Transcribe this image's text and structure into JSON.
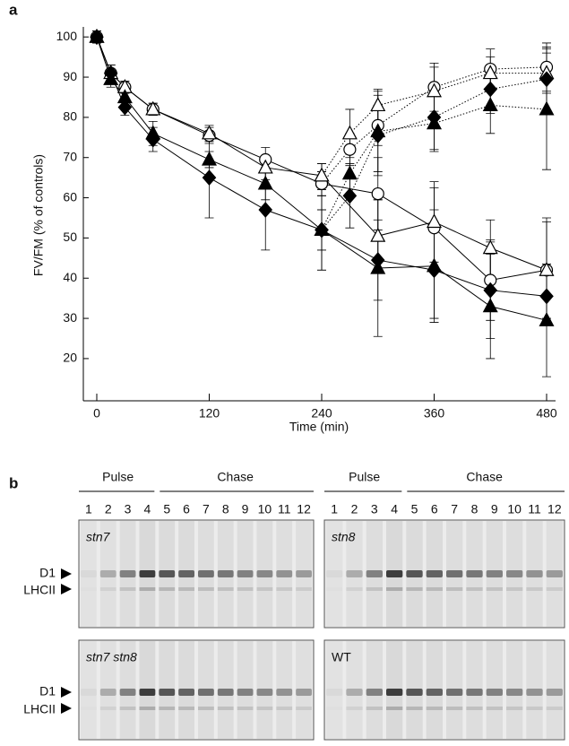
{
  "panel_a_label": "a",
  "chart_data": {
    "type": "line",
    "xlabel": "Time (min)",
    "ylabel": "FV/FM (% of controls)",
    "xlim": [
      -14,
      490
    ],
    "xticks": [
      0,
      120,
      240,
      360,
      480
    ],
    "ylim": [
      9.5,
      102.5
    ],
    "yticks": [
      20,
      30,
      40,
      50,
      60,
      70,
      80,
      90,
      100
    ],
    "series": [
      {
        "marker": "circle",
        "filled": false,
        "dash": "dotted",
        "color": "#000000",
        "x": [
          240,
          270,
          300,
          360,
          420,
          480
        ],
        "values": [
          63.5,
          72,
          78,
          87.5,
          92,
          92.5
        ],
        "errors": [
          3,
          4,
          5,
          6,
          5,
          6
        ]
      },
      {
        "marker": "triangle",
        "filled": false,
        "dash": "dotted",
        "color": "#000000",
        "x": [
          240,
          270,
          300,
          360,
          420,
          480
        ],
        "values": [
          65.5,
          76,
          83,
          86.5,
          91,
          91
        ],
        "errors": [
          3,
          6,
          4,
          6,
          4,
          5
        ]
      },
      {
        "marker": "diamond",
        "filled": true,
        "dash": "dotted",
        "color": "#000000",
        "x": [
          240,
          270,
          300,
          360,
          420,
          480
        ],
        "values": [
          52,
          60.5,
          75.5,
          80,
          87,
          89.5
        ],
        "errors": [
          10,
          8,
          10,
          8,
          6,
          8
        ]
      },
      {
        "marker": "triangle",
        "filled": true,
        "dash": "dotted",
        "color": "#000000",
        "x": [
          240,
          270,
          300,
          360,
          420,
          480
        ],
        "values": [
          52,
          66,
          76.5,
          78.5,
          83,
          82
        ],
        "errors": [
          5,
          6,
          10,
          7,
          7,
          15
        ]
      },
      {
        "marker": "circle",
        "filled": false,
        "dash": "solid",
        "color": "#000000",
        "x": [
          0,
          15,
          30,
          60,
          120,
          180,
          240,
          300,
          360,
          420,
          480
        ],
        "values": [
          100,
          91,
          87.5,
          82,
          75.5,
          69.5,
          63.5,
          61,
          52.5,
          39.5,
          42
        ],
        "errors": [
          1.5,
          2,
          1.5,
          1.5,
          2,
          3,
          3,
          9,
          10,
          10,
          12
        ]
      },
      {
        "marker": "triangle",
        "filled": false,
        "dash": "solid",
        "color": "#000000",
        "x": [
          0,
          15,
          30,
          60,
          120,
          180,
          240,
          300,
          360,
          420,
          480
        ],
        "values": [
          100,
          91,
          87.5,
          82,
          76,
          67.5,
          65.5,
          50.5,
          54,
          47.5,
          42
        ],
        "errors": [
          1.5,
          2,
          1.5,
          1.5,
          2,
          3,
          3,
          9,
          10,
          7,
          13
        ]
      },
      {
        "marker": "diamond",
        "filled": true,
        "dash": "solid",
        "color": "#000000",
        "x": [
          0,
          15,
          30,
          60,
          120,
          180,
          240,
          300,
          360,
          420,
          480
        ],
        "values": [
          100,
          91,
          82.5,
          74.5,
          65,
          57,
          52,
          44.5,
          42,
          37,
          35.5
        ],
        "errors": [
          1.5,
          2,
          2,
          3,
          10,
          10,
          10,
          10,
          12,
          12,
          6
        ]
      },
      {
        "marker": "triangle",
        "filled": true,
        "dash": "solid",
        "color": "#000000",
        "x": [
          0,
          15,
          30,
          60,
          120,
          180,
          240,
          300,
          360,
          420,
          480
        ],
        "values": [
          100,
          89.5,
          85,
          76,
          69.5,
          63.5,
          52,
          42.5,
          43,
          33,
          29.5
        ],
        "errors": [
          1.5,
          2,
          2,
          3,
          2,
          4,
          5,
          17,
          14,
          13,
          14
        ]
      }
    ]
  },
  "panel_b": {
    "label": "b",
    "headers": [
      {
        "pulse": "Pulse",
        "chase": "Chase",
        "lanes": [
          "1",
          "2",
          "3",
          "4",
          "5",
          "6",
          "7",
          "8",
          "9",
          "10",
          "11",
          "12"
        ]
      },
      {
        "pulse": "Pulse",
        "chase": "Chase",
        "lanes": [
          "1",
          "2",
          "3",
          "4",
          "5",
          "6",
          "7",
          "8",
          "9",
          "10",
          "11",
          "12"
        ]
      }
    ],
    "rows": [
      {
        "bands": [
          "D1",
          "LHCII"
        ],
        "gels": [
          "stn7",
          "stn8"
        ]
      },
      {
        "bands": [
          "D1",
          "LHCII"
        ],
        "gels": [
          "stn7 stn8",
          "WT"
        ]
      }
    ]
  }
}
